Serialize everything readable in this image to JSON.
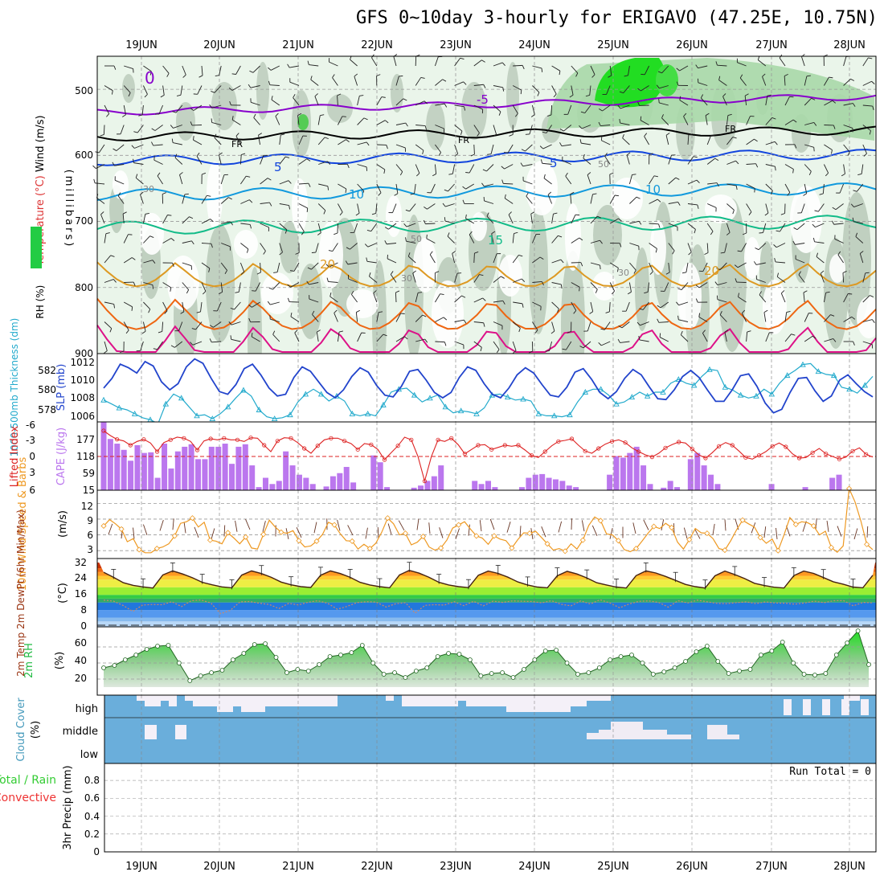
{
  "title": "GFS 0~10day 3-hourly for ERIGAVO (47.25E, 10.75N)",
  "colors": {
    "wind": "#000000",
    "temp": "#8800cc",
    "rh": "#00aa00",
    "slp": "#2244cc",
    "thick": "#22aacc",
    "li": "#dd2222",
    "cape": "#bb77ee",
    "wind10": "#ee9922",
    "t2m": "#993311",
    "rh2m": "#22bb44",
    "cloud": "#6aaedb",
    "precip_total": "#33cc33",
    "precip_conv": "#ee3333"
  },
  "chart_data": [
    {
      "id": "upper",
      "type": "heatmap",
      "ylabel_parts": [
        "Wind (m/s)",
        "Temperature (°C)",
        "RH (%)"
      ],
      "yunit": "(millibars)",
      "ylim": [
        900,
        450
      ],
      "yticks": [
        500,
        600,
        700,
        800,
        900
      ],
      "dates": [
        "19JUN",
        "20JUN",
        "21JUN",
        "22JUN",
        "23JUN",
        "24JUN",
        "25JUN",
        "26JUN",
        "27JUN",
        "28JUN"
      ],
      "labels": {
        "fr": "FR",
        "m5": "-5",
        "p0": "0",
        "p5": "5",
        "p10": "10",
        "p15": "15",
        "p20": "20",
        "r30": "30",
        "r50": "50"
      },
      "isotherms": [
        {
          "t": "-5",
          "p": 535,
          "color": "#8800cc"
        },
        {
          "t": "0",
          "p": 572,
          "color": "#000000"
        },
        {
          "t": "5",
          "p": 608,
          "color": "#1144dd"
        },
        {
          "t": "10",
          "p": 660,
          "color": "#1199dd"
        },
        {
          "t": "15",
          "p": 710,
          "color": "#11bb88"
        },
        {
          "t": "20",
          "p": 780,
          "color": "#dd9922"
        },
        {
          "t": "25",
          "p": 840,
          "color": "#ee6611"
        },
        {
          "t": "30",
          "p": 885,
          "color": "#dd1188"
        }
      ]
    },
    {
      "id": "slp",
      "type": "line",
      "ylabel_left": "1000-500mb Thickness (dm)",
      "ylabel_right": "SLP (mb)",
      "yticks_left": [
        578,
        580,
        582
      ],
      "yticks_right": [
        1006,
        1008,
        1010,
        1012
      ],
      "series": [
        {
          "name": "SLP (mb)",
          "values": [
            1009.1,
            1010.2,
            1011.8,
            1011.4,
            1010.8,
            1012.1,
            1011.6,
            1009.8,
            1008.9,
            1009.6,
            1011.5,
            1012.4,
            1011.9,
            1010.2,
            1008.7,
            1008.4,
            1009.5,
            1011.3,
            1011.8,
            1010.6,
            1009.1,
            1008.2,
            1008.4,
            1010.3,
            1011.5,
            1011.0,
            1009.8,
            1008.6,
            1008.0,
            1008.9,
            1010.4,
            1011.4,
            1010.9,
            1009.4,
            1008.3,
            1008.1,
            1009.3,
            1011.0,
            1011.2,
            1010.0,
            1008.6,
            1008.0,
            1008.6,
            1010.3,
            1011.5,
            1011.1,
            1009.6,
            1008.4,
            1008.0,
            1009.1,
            1010.6,
            1011.4,
            1010.8,
            1009.5,
            1008.3,
            1008.1,
            1009.2,
            1010.9,
            1011.3,
            1010.1,
            1008.6,
            1007.9,
            1008.7,
            1010.2,
            1011.2,
            1010.6,
            1009.2,
            1007.9,
            1007.8,
            1008.9,
            1010.4,
            1011.1,
            1010.3,
            1008.9,
            1007.6,
            1007.6,
            1008.9,
            1010.5,
            1010.7,
            1009.3,
            1007.4,
            1006.3,
            1006.7,
            1008.6,
            1010.2,
            1010.3,
            1008.8,
            1007.6,
            1008.2,
            1010.0,
            1010.6,
            1009.6,
            1008.7,
            1008.1
          ]
        },
        {
          "name": "Thickness (dm)",
          "values": [
            579.0,
            578.6,
            578.2,
            578.0,
            577.6,
            577.2,
            577.0,
            576.6,
            578.6,
            579.6,
            579.2,
            578.3,
            577.4,
            577.5,
            577.1,
            577.6,
            578.3,
            579.2,
            580.0,
            579.4,
            578.0,
            577.3,
            577.1,
            577.2,
            577.5,
            578.8,
            579.6,
            580.1,
            579.6,
            578.9,
            579.4,
            578.9,
            577.6,
            577.4,
            577.6,
            577.4,
            578.5,
            579.8,
            580.1,
            580.2,
            579.5,
            578.8,
            579.2,
            579.5,
            578.3,
            577.7,
            577.9,
            577.8,
            577.6,
            578.2,
            579.5,
            579.6,
            579.3,
            579.0,
            579.1,
            578.9,
            577.6,
            577.4,
            577.4,
            577.3,
            577.5,
            578.8,
            579.8,
            580.1,
            580.1,
            579.5,
            578.6,
            578.8,
            579.3,
            579.8,
            579.4,
            579.8,
            579.8,
            580.7,
            581.1,
            580.7,
            580.5,
            581.4,
            582.1,
            582.0,
            580.3,
            580.0,
            579.5,
            579.2,
            579.4,
            580.1,
            579.6,
            580.7,
            581.5,
            582.0,
            582.6,
            582.7,
            581.9,
            581.6,
            581.5,
            580.3,
            580.1,
            579.7,
            580.5,
            581.4
          ]
        }
      ]
    },
    {
      "id": "li_cape",
      "type": "bar",
      "ylabel_left": "Lifted Index",
      "ylabel_right": "CAPE (J/kg)",
      "yticks_left": [
        "-6",
        "-3",
        "0",
        "3",
        "6"
      ],
      "yticks_right": [
        "15",
        "59",
        "118",
        "177"
      ],
      "series": [
        {
          "name": "Lifted Index",
          "values": [
            -4.8,
            -3.9,
            -3.2,
            -2.9,
            -2.1,
            -2.8,
            -3.2,
            -2.5,
            -0.9,
            -2.6,
            -3.1,
            -3.6,
            -3.4,
            -2.8,
            -1.2,
            -2.9,
            -3.3,
            -3.1,
            -3.4,
            -3.1,
            -3.1,
            -2.8,
            -3.5,
            -3.4,
            -2.1,
            -0.9,
            -2.9,
            -3.5,
            -3.4,
            -2.6,
            -1.5,
            -0.6,
            -2.0,
            -3.1,
            -3.4,
            -3.4,
            -2.9,
            -2.4,
            -1.3,
            -2.4,
            -2.2,
            -1.3,
            0.6,
            -0.7,
            -2.0,
            -3.6,
            -3.1,
            0.0,
            4.6,
            0.0,
            -3.1,
            -2.8,
            -3.4,
            -2.2,
            -0.5,
            -1.3,
            -2.1,
            -2.2,
            -1.3,
            -1.7,
            -2.1,
            -1.9,
            -2.1,
            -1.2,
            -0.2,
            0.2,
            -0.9,
            -2.0,
            -2.8,
            -3.0,
            -3.3,
            -2.1,
            -1.0,
            -0.6,
            -1.5,
            -2.3,
            -2.8,
            -3.1,
            -2.6,
            -1.6,
            -0.9,
            -0.3,
            0.1,
            -0.6,
            -1.6,
            -2.2,
            -2.7,
            -2.5,
            -1.4,
            -0.3,
            0.3,
            -0.7,
            -1.9,
            -2.6,
            -2.1,
            -1.0,
            0.2,
            0.5,
            -0.2,
            -0.9,
            -1.9,
            -2.5,
            -1.8,
            -0.5,
            0.3,
            0.2,
            -0.7,
            -1.5,
            -0.5,
            0.0,
            0.5,
            0.1,
            -1.0,
            -1.6,
            -0.4,
            0.1
          ]
        },
        {
          "name": "CAPE (J/kg)",
          "values": [
            220,
            165,
            150,
            130,
            95,
            145,
            120,
            122,
            40,
            150,
            70,
            125,
            140,
            148,
            100,
            100,
            140,
            140,
            150,
            85,
            140,
            148,
            80,
            10,
            40,
            20,
            30,
            125,
            80,
            50,
            40,
            20,
            0,
            12,
            45,
            55,
            75,
            25,
            0,
            0,
            112,
            90,
            10,
            0,
            0,
            0,
            8,
            15,
            30,
            45,
            80,
            0,
            0,
            0,
            0,
            30,
            20,
            30,
            10,
            0,
            0,
            0,
            10,
            40,
            50,
            52,
            40,
            35,
            30,
            15,
            10,
            0,
            0,
            0,
            0,
            50,
            110,
            105,
            120,
            140,
            80,
            20,
            0,
            8,
            30,
            10,
            0,
            100,
            120,
            80,
            50,
            20,
            0,
            0,
            0,
            0,
            0,
            0,
            0,
            20,
            0,
            0,
            0,
            0,
            10,
            0,
            0,
            0,
            40,
            50,
            0,
            0,
            0,
            0,
            0
          ]
        }
      ]
    },
    {
      "id": "wind10",
      "type": "line",
      "ylabel": "10m Wind Speed & Barbs",
      "yunit": "(m/s)",
      "yticks": [
        "3",
        "6",
        "9",
        "12"
      ],
      "series": [
        {
          "name": "10m Wind Speed",
          "values": [
            7.7,
            8.9,
            8.1,
            7.1,
            4.7,
            5.3,
            3.2,
            2.6,
            2.6,
            3.4,
            3.7,
            4.3,
            5.8,
            8.2,
            8.5,
            9.2,
            7.5,
            8.4,
            5.0,
            4.8,
            4.3,
            6.4,
            5.4,
            4.3,
            5.6,
            3.5,
            3.3,
            6.1,
            8.8,
            7.5,
            6.5,
            6.3,
            6.8,
            4.9,
            3.7,
            3.9,
            4.8,
            6.1,
            8.4,
            7.9,
            6.2,
            4.9,
            4.8,
            3.3,
            4.2,
            3.4,
            4.4,
            6.5,
            9.2,
            8.1,
            6.0,
            6.3,
            4.1,
            4.6,
            5.7,
            3.7,
            3.1,
            3.5,
            5.0,
            7.3,
            7.9,
            8.5,
            7.1,
            5.8,
            5.4,
            4.2,
            5.8,
            5.2,
            4.9,
            3.5,
            5.1,
            6.4,
            6.3,
            6.7,
            5.5,
            4.3,
            3.1,
            3.4,
            2.9,
            4.3,
            3.3,
            5.0,
            7.8,
            9.4,
            8.7,
            6.2,
            6.0,
            4.9,
            3.2,
            2.8,
            3.4,
            4.8,
            6.3,
            7.6,
            7.2,
            8.2,
            7.4,
            4.6,
            3.3,
            5.1,
            7.2,
            6.4,
            6.3,
            5.3,
            3.4,
            3.1,
            4.9,
            7.0,
            8.8,
            8.1,
            7.5,
            5.5,
            4.4,
            5.2,
            3.0,
            6.0,
            9.3,
            8.0,
            8.5,
            8.3,
            7.7,
            6.0,
            6.7,
            3.6,
            2.7,
            3.9,
            14.8,
            12.3,
            8.6,
            4.2,
            3.2
          ]
        }
      ]
    },
    {
      "id": "t2m",
      "type": "area",
      "ylabel": "2m Temp 2m DewPt (6hr Min/Max)",
      "yunit": "(°C)",
      "yticks": [
        "0",
        "8",
        "16",
        "24",
        "32"
      ],
      "series": [
        {
          "name": "2m Temp",
          "values": [
            27.9,
            25.2,
            22.4,
            21.0,
            20.2,
            19.6,
            26.5,
            28.6,
            27.0,
            25.0,
            22.6,
            21.3,
            20.2,
            19.7,
            26.4,
            28.6,
            27.2,
            25.2,
            22.7,
            21.3,
            20.3,
            19.9,
            26.3,
            28.6,
            27.2,
            25.2,
            22.6,
            21.2,
            20.3,
            19.7,
            26.5,
            28.9,
            27.4,
            25.2,
            22.6,
            21.2,
            20.3,
            19.8,
            26.3,
            28.5,
            27.3,
            25.3,
            22.8,
            21.2,
            20.1,
            19.7,
            26.0,
            28.4,
            27.0,
            24.9,
            22.4,
            21.2,
            20.1,
            19.6,
            26.1,
            28.6,
            27.5,
            25.7,
            23.6,
            21.5,
            20.3,
            19.6,
            26.0,
            28.5,
            26.7,
            24.6,
            22.1,
            20.9,
            20.0,
            19.6,
            26.1,
            28.5,
            27.3,
            25.1,
            22.9,
            21.6,
            20.1,
            19.7,
            26.3
          ]
        },
        {
          "name": "2m DewPt",
          "values": [
            13.2,
            12.7,
            10.4,
            7.3,
            10.6,
            10.9,
            10.8,
            12.4,
            9.8,
            12.9,
            13.3,
            11.7,
            6.1,
            7.8,
            12.3,
            12.5,
            11.6,
            10.9,
            8.8,
            11.5,
            10.7,
            12.1,
            12.9,
            11.6,
            8.4,
            9.9,
            11.9,
            12.4,
            12.2,
            9.6,
            11.3,
            11.9,
            6.4,
            10.5,
            10.8,
            10.6,
            12.4,
            10.3,
            12.6,
            10.2,
            12.7,
            12.0,
            12.8,
            12.6,
            12.5,
            11.8,
            12.9,
            11.0,
            10.2,
            12.8,
            11.2,
            13.4,
            11.7,
            9.2,
            11.2,
            12.6,
            12.8,
            12.0,
            9.5,
            12.9,
            11.7,
            13.2,
            12.3,
            11.5,
            11.4,
            11.9,
            12.3,
            11.4,
            12.3,
            11.7,
            11.6,
            11.1,
            11.7,
            12.7,
            11.9,
            12.9,
            13.0,
            10.2,
            12.0,
            11.8
          ]
        }
      ]
    },
    {
      "id": "rh2m",
      "type": "area",
      "ylabel": "2m RH",
      "yunit": "(%)",
      "yticks": [
        "20",
        "40",
        "60"
      ],
      "series": [
        {
          "name": "2m RH",
          "values": [
            34,
            37,
            44,
            50,
            57,
            61,
            62,
            40,
            18,
            24,
            28,
            31,
            44,
            52,
            63,
            64,
            47,
            28,
            32,
            30,
            38,
            48,
            50,
            53,
            62,
            40,
            26,
            28,
            22,
            30,
            34,
            48,
            52,
            51,
            44,
            24,
            27,
            28,
            22,
            32,
            44,
            55,
            56,
            40,
            26,
            28,
            34,
            44,
            48,
            50,
            40,
            26,
            29,
            34,
            42,
            54,
            61,
            42,
            27,
            30,
            32,
            50,
            55,
            66,
            40,
            26,
            25,
            27,
            50,
            65,
            80,
            38
          ]
        }
      ]
    },
    {
      "id": "cloud",
      "type": "heatmap",
      "ylabel": "Cloud Cover",
      "yunit": "(%)",
      "levels": [
        "high",
        "middle",
        "low"
      ]
    },
    {
      "id": "precip",
      "type": "bar",
      "ylabel_left_green": "Total / Rain",
      "ylabel_left_red": "Convective",
      "ylabel": "3hr Precip (mm)",
      "yticks": [
        "0",
        "0.2",
        "0.4",
        "0.6",
        "0.8"
      ],
      "run_total": "Run Total = 0",
      "dates": [
        "19JUN",
        "20JUN",
        "21JUN",
        "22JUN",
        "23JUN",
        "24JUN",
        "25JUN",
        "26JUN",
        "27JUN",
        "28JUN"
      ]
    }
  ]
}
